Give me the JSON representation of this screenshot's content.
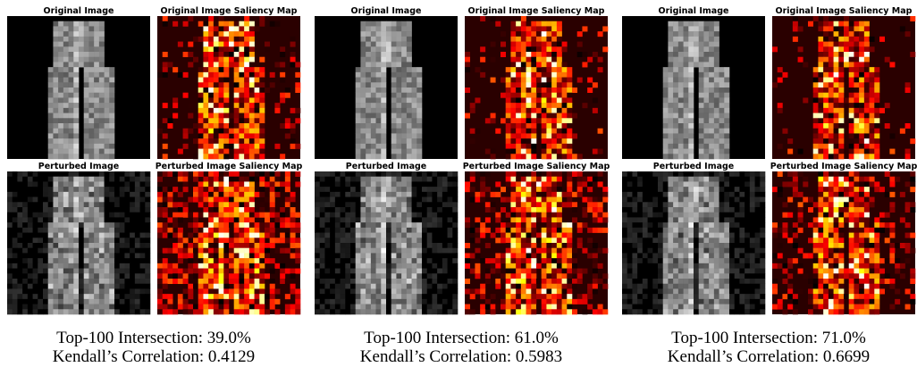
{
  "panels": [
    {
      "original_title": "Original Image",
      "original_saliency_title": "Original Image Saliency Map",
      "perturbed_title": "Perturbed Image",
      "perturbed_saliency_title": "Perturbed Image Saliency Map",
      "intersection": "Top-100 Intersection: 39.0%",
      "kendall": "Kendall’s Correlation: 0.4129"
    },
    {
      "original_title": "Original Image",
      "original_saliency_title": "Original Image Saliency Map",
      "perturbed_title": "Perturbed Image",
      "perturbed_saliency_title": "Perturbed Image Saliency Map",
      "intersection": "Top-100 Intersection: 61.0%",
      "kendall": "Kendall’s Correlation: 0.5983"
    },
    {
      "original_title": "Original Image",
      "original_saliency_title": "Original Image Saliency Map",
      "perturbed_title": "Perturbed Image",
      "perturbed_saliency_title": "Perturbed Image Saliency Map",
      "intersection": "Top-100 Intersection: 71.0%",
      "kendall": "Kendall’s Correlation: 0.6699"
    }
  ]
}
